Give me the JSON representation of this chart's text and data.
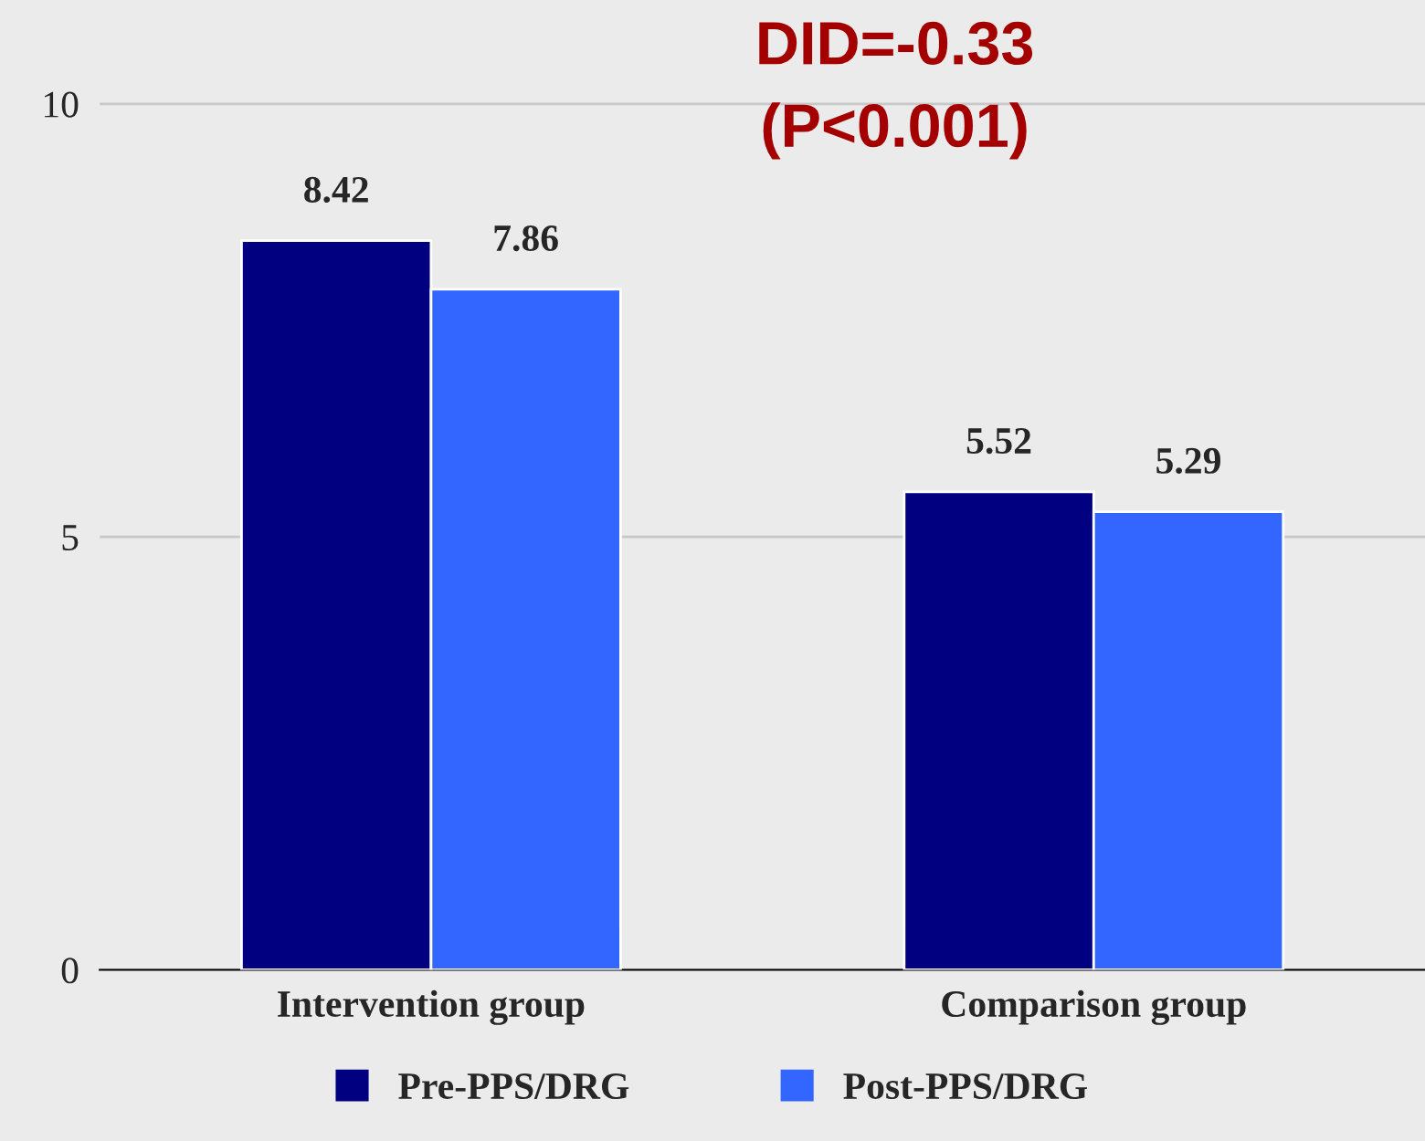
{
  "chart_data": {
    "type": "bar",
    "categories": [
      "Intervention group",
      "Comparison group"
    ],
    "series": [
      {
        "name": "Pre-PPS/DRG",
        "color": "#000080",
        "values": [
          8.42,
          5.52
        ]
      },
      {
        "name": "Post-PPS/DRG",
        "color": "#3366ff",
        "values": [
          7.86,
          5.29
        ]
      }
    ],
    "ylim": [
      0,
      11.2
    ],
    "yticks": [
      0,
      5,
      10
    ],
    "grid": "y",
    "data_labels": true,
    "legend": "bottom",
    "annotations": [
      "DID=-0.33",
      "(P<0.001)"
    ]
  }
}
